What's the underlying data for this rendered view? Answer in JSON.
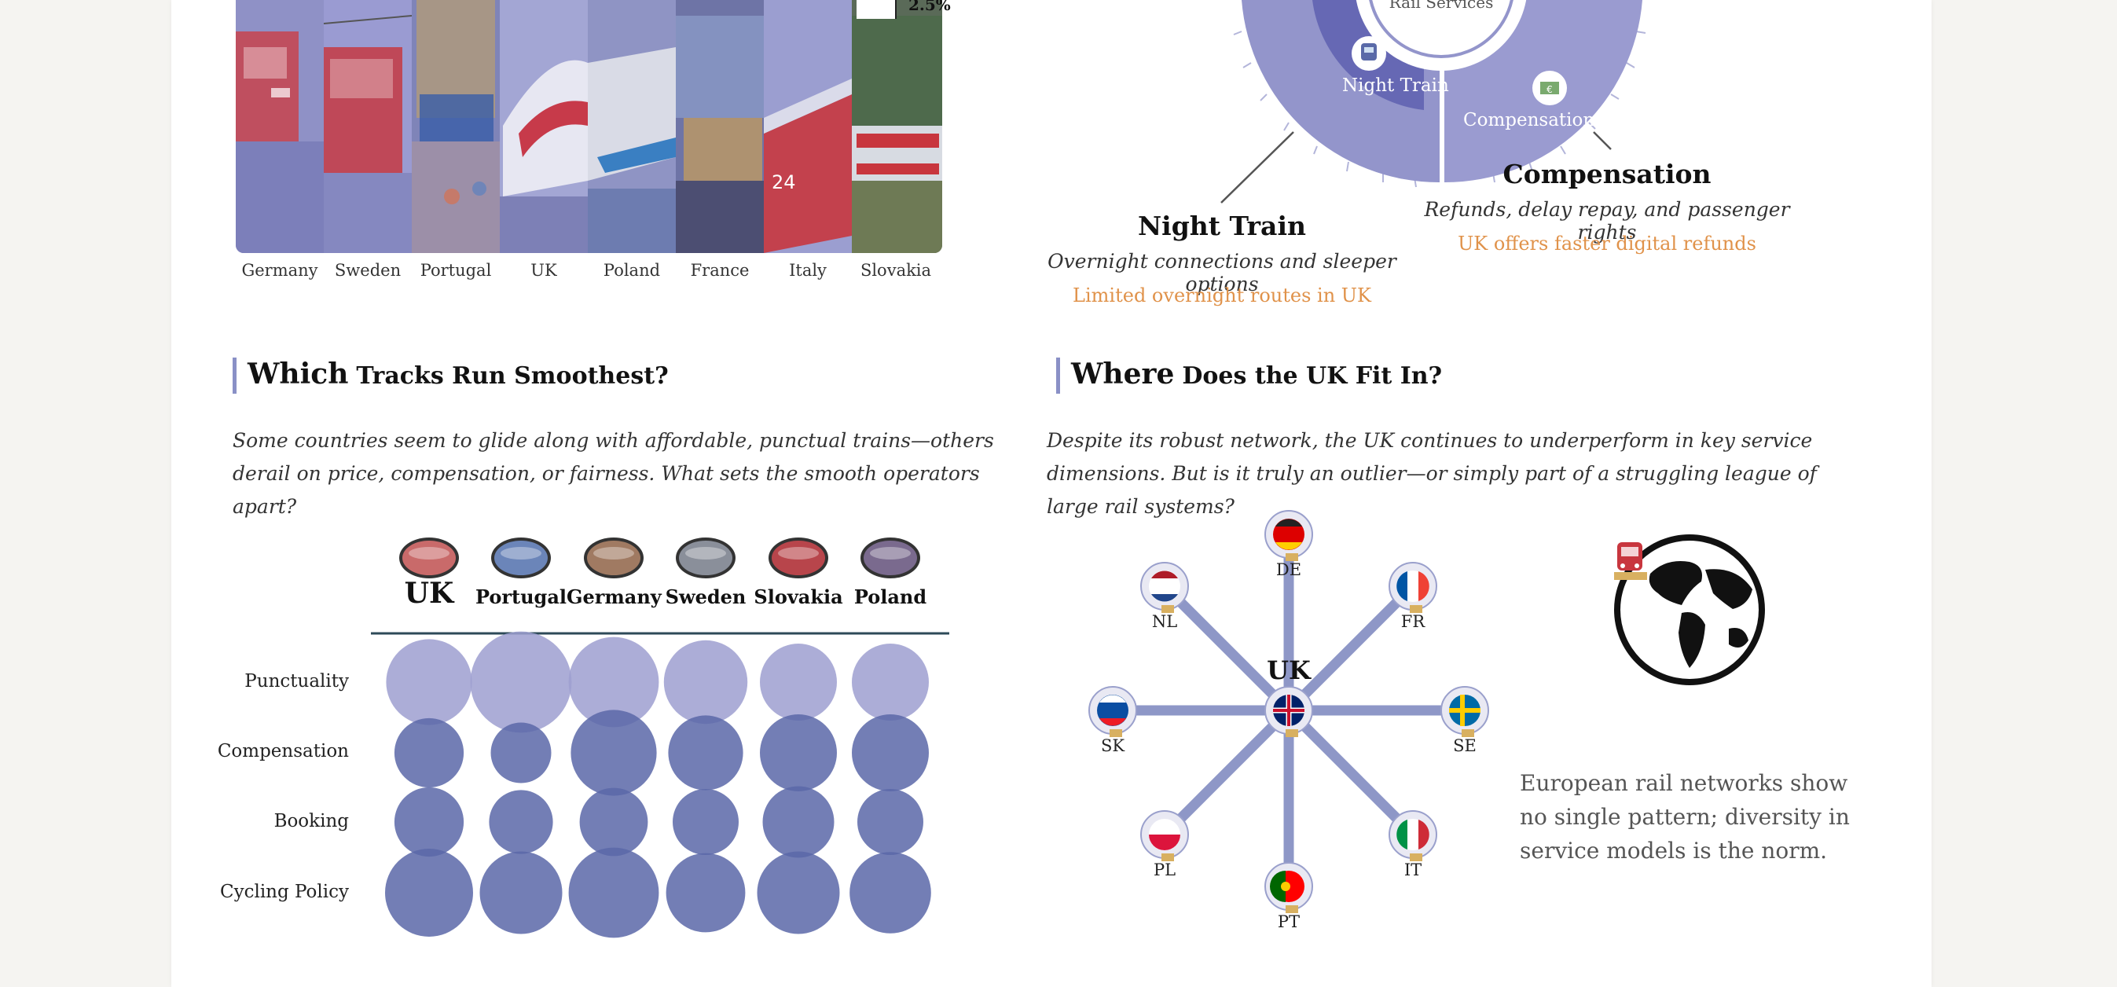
{
  "strip": {
    "countries": [
      "Germany",
      "Sweden",
      "Portugal",
      "UK",
      "Poland",
      "France",
      "Italy",
      "Slovakia"
    ],
    "tip_value": "2.5%"
  },
  "donut": {
    "center_label": "Rail Services",
    "segments": [
      {
        "label": "Night Train",
        "title": "Night Train",
        "description": "Overnight connections and sleeper options",
        "note": "Limited overnight routes in UK"
      },
      {
        "label": "Compensation",
        "title": "Compensation",
        "description": "Refunds, delay repay, and passenger rights",
        "note": "UK offers faster digital refunds"
      }
    ]
  },
  "left_section": {
    "heading_big": "Which",
    "heading_small": "Tracks Run Smoothest?",
    "intro": "Some countries seem to glide along with affordable, punctual trains—others derail on price, compensation, or fairness. What sets the smooth operators apart?"
  },
  "right_section": {
    "heading_big": "Where",
    "heading_small": "Does the UK Fit In?",
    "intro": "Despite its robust network, the UK continues to underperform in key service dimensions. But is it truly an outlier—or simply part of a struggling league of large rail systems?",
    "side_text": "European rail networks show no single pattern; diversity in service models is the norm."
  },
  "chart_data": [
    {
      "type": "heatmap",
      "title": "Which Tracks Run Smoothest?",
      "columns": [
        "UK",
        "Portugal",
        "Germany",
        "Sweden",
        "Slovakia",
        "Poland"
      ],
      "rows": [
        "Punctuality",
        "Compensation",
        "Booking",
        "Cycling Policy"
      ],
      "values": [
        [
          0.78,
          0.92,
          0.82,
          0.76,
          0.7,
          0.7
        ],
        [
          0.63,
          0.55,
          0.78,
          0.68,
          0.7,
          0.7
        ],
        [
          0.63,
          0.58,
          0.62,
          0.6,
          0.65,
          0.6
        ],
        [
          0.8,
          0.75,
          0.82,
          0.72,
          0.75,
          0.74
        ]
      ],
      "colors": {
        "Punctuality": "#9d9fd0",
        "other": "#5a67a8",
        "axis": "#2d4a58"
      }
    },
    {
      "type": "radar",
      "title": "Where Does the UK Fit In?",
      "center": "UK",
      "spokes": [
        "DE",
        "FR",
        "SE",
        "IT",
        "PT",
        "PL",
        "SK",
        "NL"
      ],
      "values": [
        1,
        1,
        1,
        1,
        1,
        1,
        1,
        1
      ],
      "color": "#8e97c7"
    }
  ],
  "colors": {
    "accent": "#8a90c6",
    "orange": "#e0924a",
    "donut_outer": "#9a9bd0",
    "donut_inner": "#6a6db5"
  }
}
